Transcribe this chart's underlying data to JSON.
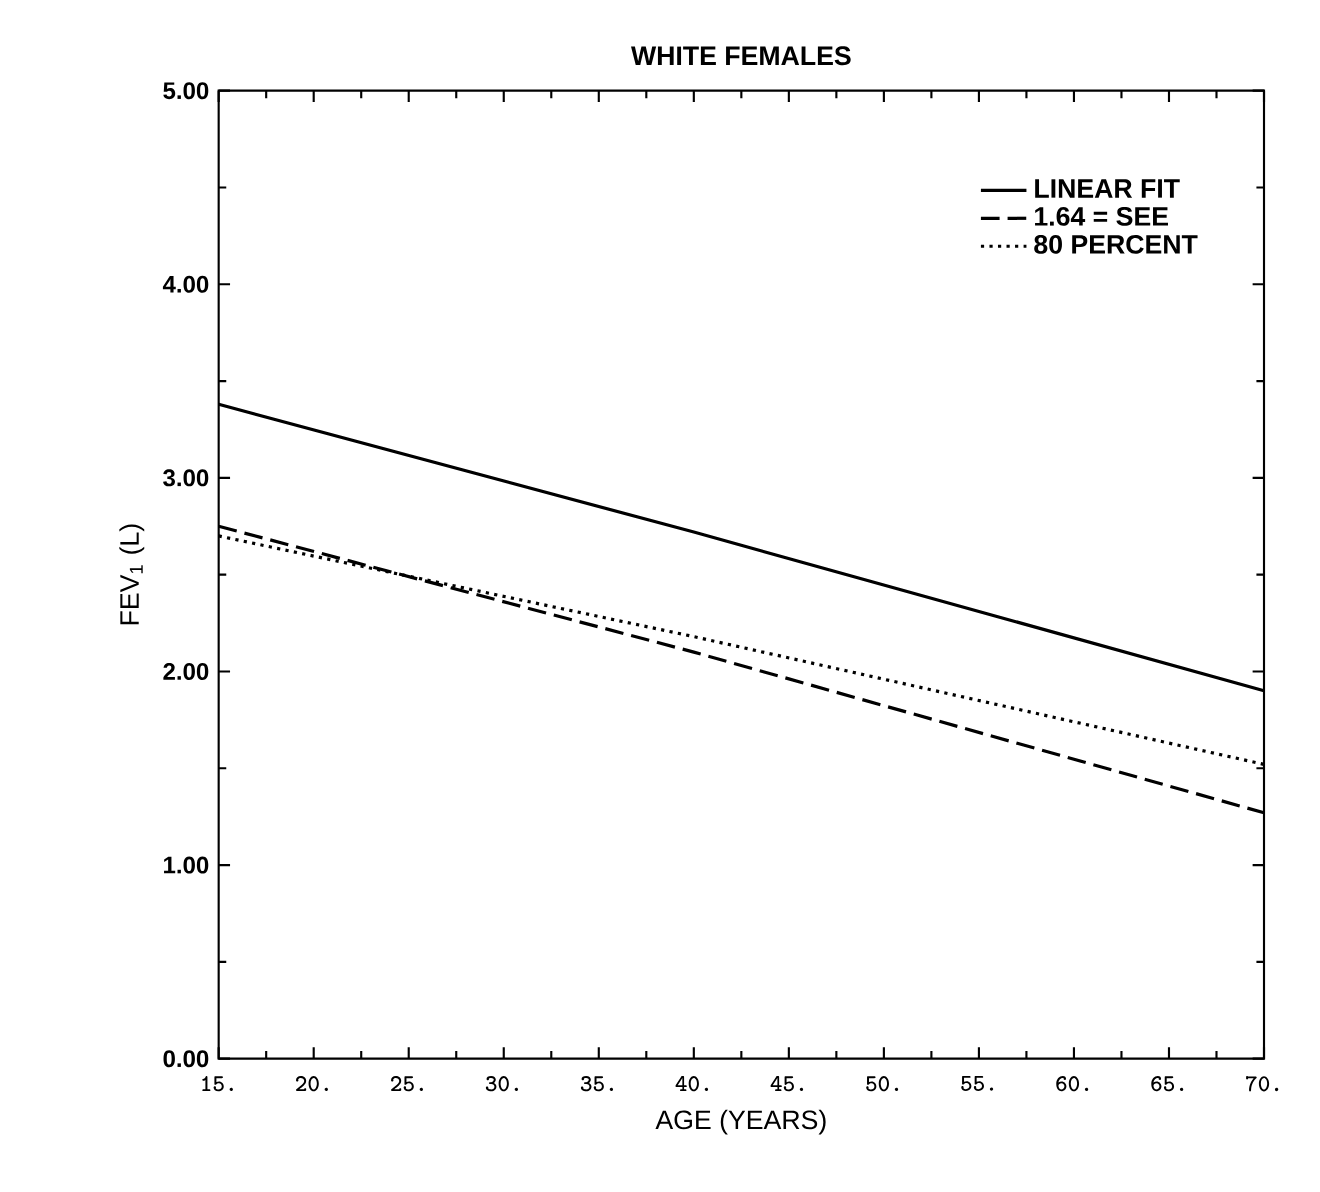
{
  "chart_data": {
    "type": "line",
    "title": "WHITE FEMALES",
    "xlabel": "AGE (YEARS)",
    "ylabel": "FEV$_{1}$ (L)",
    "x": [
      15,
      40,
      70
    ],
    "series": [
      {
        "name": "LINEAR FIT",
        "color": "#000000",
        "line_style": "solid",
        "values": [
          3.38,
          2.72,
          1.9
        ]
      },
      {
        "name": "1.64 = SEE",
        "color": "#000000",
        "line_style": "dashed",
        "values": [
          2.75,
          2.1,
          1.27
        ]
      },
      {
        "name": "80 PERCENT",
        "color": "#000000",
        "line_style": "dotted",
        "values": [
          2.7,
          2.18,
          1.52
        ]
      }
    ],
    "xlim": [
      15,
      70
    ],
    "ylim": [
      0,
      5
    ],
    "xticks": [
      {
        "value": 15,
        "label": "15."
      },
      {
        "value": 20,
        "label": "20."
      },
      {
        "value": 25,
        "label": "25."
      },
      {
        "value": 30,
        "label": "30."
      },
      {
        "value": 35,
        "label": "35."
      },
      {
        "value": 40,
        "label": "40."
      },
      {
        "value": 45,
        "label": "45."
      },
      {
        "value": 50,
        "label": "50."
      },
      {
        "value": 55,
        "label": "55."
      },
      {
        "value": 60,
        "label": "60."
      },
      {
        "value": 65,
        "label": "65."
      },
      {
        "value": 70,
        "label": "70."
      }
    ],
    "yticks": [
      {
        "value": 0,
        "label": "0.00"
      },
      {
        "value": 1,
        "label": "1.00"
      },
      {
        "value": 2,
        "label": "2.00"
      },
      {
        "value": 3,
        "label": "3.00"
      },
      {
        "value": 4,
        "label": "4.00"
      },
      {
        "value": 5,
        "label": "5.00"
      }
    ],
    "legend": "top right",
    "grid": false,
    "marker": "none"
  }
}
